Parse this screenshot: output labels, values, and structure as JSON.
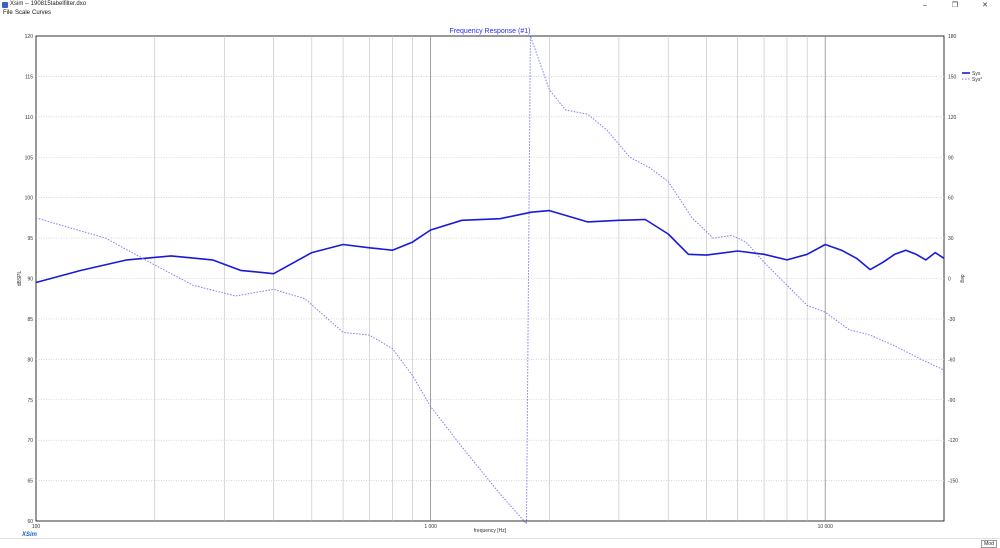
{
  "window": {
    "title": "Xsim -- 190815tabelfilter.dxo",
    "minimize_label": "–",
    "maximize_label": "❐",
    "close_label": "✕",
    "app_icon": "xsim-app-icon"
  },
  "menu": {
    "file": "File",
    "scale": "Scale",
    "curves": "Curves"
  },
  "logo": "XSim",
  "status": {
    "mode": "Mod"
  },
  "colors": {
    "curve": "#1a1ad6",
    "phase": "#7b7bf0",
    "grid": "#bdbdbd",
    "title": "#2a2aff"
  },
  "chart_data": {
    "type": "line",
    "title": "Frequency Response (#1)",
    "xlabel": "frequency [Hz]",
    "ylabel": "dBSPL",
    "y2label": "deg",
    "xscale": "log",
    "xlim": [
      100,
      20000
    ],
    "ylim": [
      60,
      120
    ],
    "y2lim": [
      -180,
      180
    ],
    "grid": true,
    "legend_position": "top-right",
    "x_tick_labels": [
      {
        "x": 100,
        "label": "100"
      },
      {
        "x": 1000,
        "label": "1 000"
      },
      {
        "x": 10000,
        "label": "10 000"
      }
    ],
    "y_ticks": [
      120,
      115,
      110,
      105,
      100,
      95,
      90,
      85,
      80,
      75,
      70,
      65,
      60
    ],
    "y2_ticks": [
      180,
      150,
      120,
      90,
      60,
      30,
      0,
      -30,
      -60,
      -90,
      -120,
      -150
    ],
    "series": [
      {
        "name": "Sys",
        "axis": "left",
        "style": "solid",
        "points": [
          [
            100,
            89.5
          ],
          [
            130,
            91.0
          ],
          [
            170,
            92.3
          ],
          [
            220,
            92.8
          ],
          [
            280,
            92.3
          ],
          [
            330,
            91.0
          ],
          [
            400,
            90.6
          ],
          [
            500,
            93.2
          ],
          [
            600,
            94.2
          ],
          [
            700,
            93.8
          ],
          [
            800,
            93.5
          ],
          [
            900,
            94.5
          ],
          [
            1000,
            96.0
          ],
          [
            1200,
            97.2
          ],
          [
            1500,
            97.4
          ],
          [
            1800,
            98.2
          ],
          [
            2000,
            98.4
          ],
          [
            2500,
            97.0
          ],
          [
            3000,
            97.2
          ],
          [
            3500,
            97.3
          ],
          [
            4000,
            95.5
          ],
          [
            4500,
            93.0
          ],
          [
            5000,
            92.9
          ],
          [
            6000,
            93.4
          ],
          [
            7000,
            93.0
          ],
          [
            8000,
            92.3
          ],
          [
            9000,
            93.0
          ],
          [
            10000,
            94.2
          ],
          [
            11000,
            93.5
          ],
          [
            12000,
            92.5
          ],
          [
            13000,
            91.1
          ],
          [
            14000,
            92.0
          ],
          [
            15000,
            93.0
          ],
          [
            16000,
            93.5
          ],
          [
            17000,
            93.0
          ],
          [
            18000,
            92.3
          ],
          [
            19000,
            93.2
          ],
          [
            20000,
            92.5
          ]
        ]
      },
      {
        "name": "Sys°",
        "axis": "right",
        "style": "dotted",
        "points": [
          [
            100,
            45
          ],
          [
            150,
            30
          ],
          [
            200,
            10
          ],
          [
            250,
            -5
          ],
          [
            320,
            -13
          ],
          [
            400,
            -8
          ],
          [
            480,
            -15
          ],
          [
            600,
            -40
          ],
          [
            700,
            -42
          ],
          [
            800,
            -52
          ],
          [
            900,
            -72
          ],
          [
            1000,
            -95
          ],
          [
            1200,
            -125
          ],
          [
            1500,
            -160
          ],
          [
            1750,
            -182
          ],
          [
            1790,
            180
          ],
          [
            2000,
            140
          ],
          [
            2200,
            125
          ],
          [
            2500,
            122
          ],
          [
            2800,
            110
          ],
          [
            3200,
            90
          ],
          [
            3600,
            82
          ],
          [
            4000,
            72
          ],
          [
            4600,
            45
          ],
          [
            5200,
            30
          ],
          [
            5800,
            32
          ],
          [
            6300,
            27
          ],
          [
            7000,
            12
          ],
          [
            8000,
            -5
          ],
          [
            9000,
            -20
          ],
          [
            10000,
            -25
          ],
          [
            11500,
            -38
          ],
          [
            13000,
            -42
          ],
          [
            15000,
            -50
          ],
          [
            17500,
            -60
          ],
          [
            20000,
            -68
          ]
        ]
      }
    ]
  }
}
